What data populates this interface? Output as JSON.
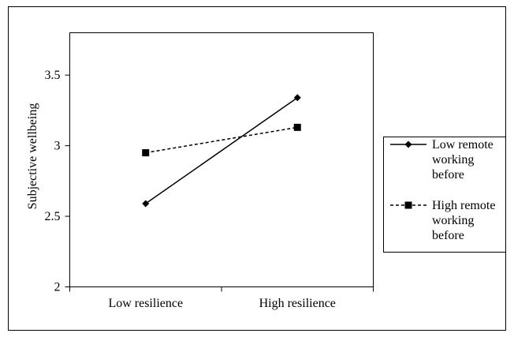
{
  "chart_data": {
    "type": "line",
    "categories": [
      "Low resilience",
      "High resilience"
    ],
    "series": [
      {
        "name": "Low remote working before",
        "legend_lines": [
          "Low remote",
          "working",
          "before"
        ],
        "values": [
          2.59,
          3.34
        ],
        "marker": "diamond",
        "line_style": "solid"
      },
      {
        "name": "High remote working before",
        "legend_lines": [
          "High remote",
          "working",
          "before"
        ],
        "values": [
          2.95,
          3.13
        ],
        "marker": "square",
        "line_style": "dashed"
      }
    ],
    "ylabel": "Subjective wellbeing",
    "ylim": [
      2,
      3.8
    ],
    "yticks": [
      2,
      2.5,
      3,
      3.5
    ],
    "ytick_labels": [
      "2",
      "2.5",
      "3",
      "3.5"
    ],
    "grid": false,
    "legend_position": "right"
  }
}
